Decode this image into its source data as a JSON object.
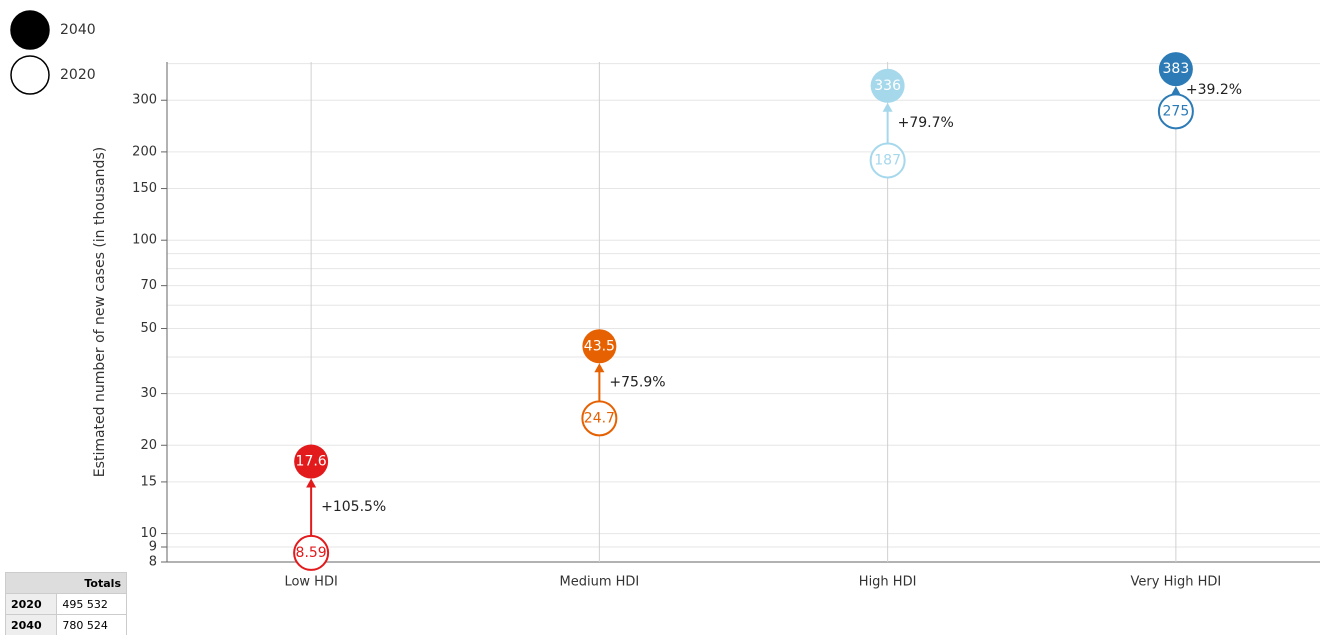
{
  "chart_data": {
    "type": "dumbbell",
    "ylabel": "Estimated number of new cases (in thousands)",
    "categories": [
      "Low HDI",
      "Medium HDI",
      "High HDI",
      "Very High HDI"
    ],
    "colors": [
      "#e31a1c",
      "#e66101",
      "#a6d8ec",
      "#2c7bb6"
    ],
    "series": [
      {
        "name": "2020",
        "color": "#000000",
        "style": "outline",
        "values": [
          8.59,
          24.7,
          187,
          275
        ]
      },
      {
        "name": "2040",
        "color": "#000000",
        "style": "filled",
        "values": [
          17.6,
          43.5,
          336,
          383
        ]
      }
    ],
    "change_labels": [
      "+105.5%",
      "+75.9%",
      "+79.7%",
      "+39.2%"
    ],
    "log_scale": true,
    "ylim": [
      8,
      405
    ],
    "yticks": [
      8,
      9,
      10,
      15,
      20,
      30,
      50,
      70,
      100,
      150,
      200,
      300
    ],
    "minor_yticks": [
      40,
      60,
      80,
      90,
      400
    ],
    "grid": true
  },
  "totals": {
    "header": "Totals",
    "rows": [
      [
        "2020",
        "495 532"
      ],
      [
        "2040",
        "780 524"
      ]
    ]
  }
}
